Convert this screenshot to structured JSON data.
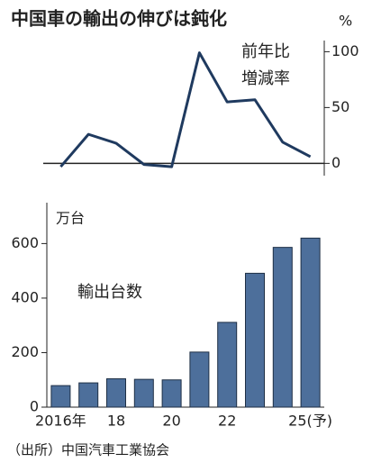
{
  "title": "中国車の輸出の伸びは鈍化",
  "source": "（出所）中国汽車工業協会",
  "chart_data": [
    {
      "type": "line",
      "unit": "%",
      "label": [
        "前年比",
        "増減率"
      ],
      "values": [
        -3,
        26,
        18,
        -1,
        -3,
        99,
        55,
        57,
        19,
        6
      ],
      "color": "#1f3a5f",
      "ylim": [
        -11,
        110
      ],
      "yticks": [
        0,
        50,
        100
      ],
      "axis_side": "right"
    },
    {
      "type": "bar",
      "unit": "万台",
      "label": "輸出台数",
      "categories": [
        "2016年",
        null,
        "18",
        null,
        "20",
        null,
        "22",
        null,
        null,
        "25(予)"
      ],
      "values": [
        79,
        89,
        104,
        102,
        100,
        202,
        311,
        491,
        586,
        620
      ],
      "color": "#4d6f9b",
      "ylim": [
        0,
        750
      ],
      "yticks": [
        0,
        200,
        400,
        600
      ],
      "axis_side": "left"
    }
  ]
}
